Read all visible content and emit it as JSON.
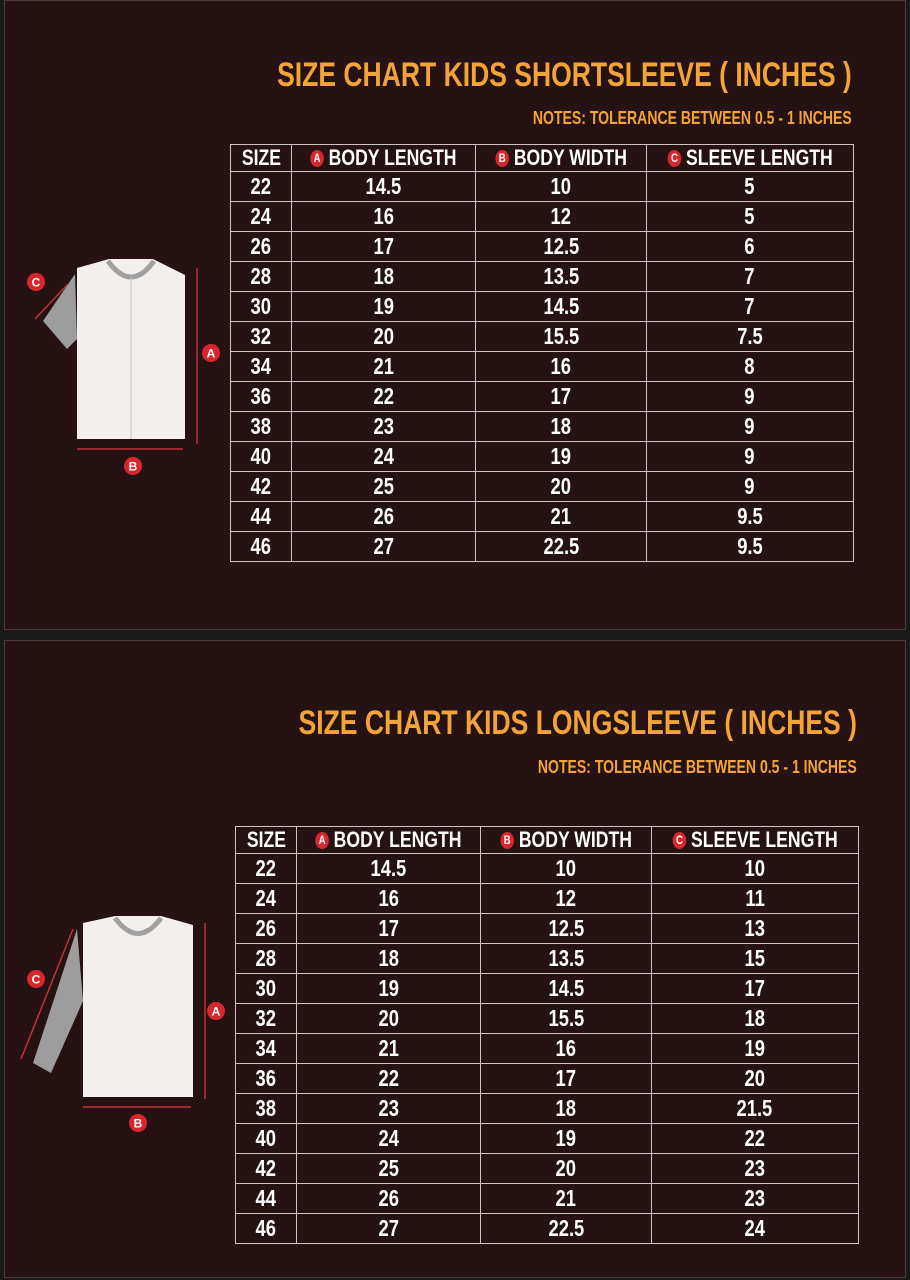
{
  "charts": [
    {
      "title": "SIZE CHART KIDS SHORTSLEEVE ( INCHES )",
      "notes": "NOTES: TOLERANCE BETWEEN 0.5 - 1 INCHES",
      "headers": [
        {
          "badge": "",
          "label": "SIZE"
        },
        {
          "badge": "A",
          "label": "BODY LENGTH"
        },
        {
          "badge": "B",
          "label": "BODY WIDTH"
        },
        {
          "badge": "C",
          "label": "SLEEVE LENGTH"
        }
      ],
      "rows": [
        [
          "22",
          "14.5",
          "10",
          "5"
        ],
        [
          "24",
          "16",
          "12",
          "5"
        ],
        [
          "26",
          "17",
          "12.5",
          "6"
        ],
        [
          "28",
          "18",
          "13.5",
          "7"
        ],
        [
          "30",
          "19",
          "14.5",
          "7"
        ],
        [
          "32",
          "20",
          "15.5",
          "7.5"
        ],
        [
          "34",
          "21",
          "16",
          "8"
        ],
        [
          "36",
          "22",
          "17",
          "9"
        ],
        [
          "38",
          "23",
          "18",
          "9"
        ],
        [
          "40",
          "24",
          "19",
          "9"
        ],
        [
          "42",
          "25",
          "20",
          "9"
        ],
        [
          "44",
          "26",
          "21",
          "9.5"
        ],
        [
          "46",
          "27",
          "22.5",
          "9.5"
        ]
      ],
      "diagram_labels": {
        "a": "A",
        "b": "B",
        "c": "C"
      }
    },
    {
      "title": "SIZE CHART KIDS LONGSLEEVE ( INCHES )",
      "notes": "NOTES: TOLERANCE BETWEEN 0.5 - 1 INCHES",
      "headers": [
        {
          "badge": "",
          "label": "SIZE"
        },
        {
          "badge": "A",
          "label": "BODY LENGTH"
        },
        {
          "badge": "B",
          "label": "BODY WIDTH"
        },
        {
          "badge": "C",
          "label": "SLEEVE LENGTH"
        }
      ],
      "rows": [
        [
          "22",
          "14.5",
          "10",
          "10"
        ],
        [
          "24",
          "16",
          "12",
          "11"
        ],
        [
          "26",
          "17",
          "12.5",
          "13"
        ],
        [
          "28",
          "18",
          "13.5",
          "15"
        ],
        [
          "30",
          "19",
          "14.5",
          "17"
        ],
        [
          "32",
          "20",
          "15.5",
          "18"
        ],
        [
          "34",
          "21",
          "16",
          "19"
        ],
        [
          "36",
          "22",
          "17",
          "20"
        ],
        [
          "38",
          "23",
          "18",
          "21.5"
        ],
        [
          "40",
          "24",
          "19",
          "22"
        ],
        [
          "42",
          "25",
          "20",
          "23"
        ],
        [
          "44",
          "26",
          "21",
          "23"
        ],
        [
          "46",
          "27",
          "22.5",
          "24"
        ]
      ],
      "diagram_labels": {
        "a": "A",
        "b": "B",
        "c": "C"
      }
    }
  ],
  "colors": {
    "background": "#261212",
    "accent": "#f2a43a",
    "badge": "#d8262e"
  }
}
